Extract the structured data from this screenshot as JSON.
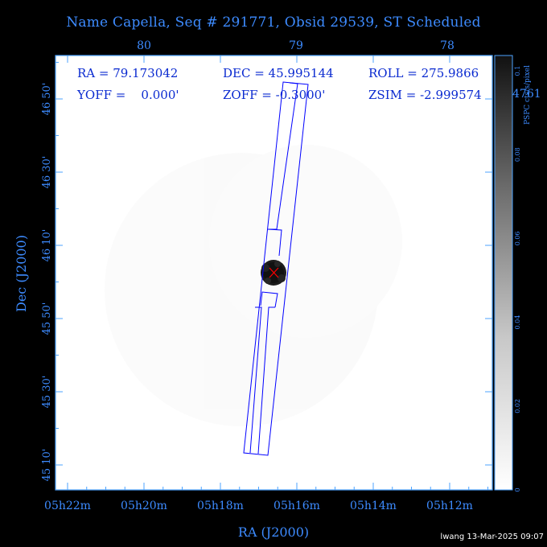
{
  "header": {
    "title": "Name Capella, Seq # 291771, Obsid 29539, ST Scheduled",
    "credit": "lwang 13-Mar-2025 09:07"
  },
  "info": {
    "ra_label": "RA = 79.173042",
    "dec_label": "DEC = 45.995144",
    "roll_label": "ROLL = 275.9866",
    "yoff_label": "YOFF =    0.000'",
    "zoff_label": "ZOFF = -0.3000'",
    "zsim_label": "ZSIM = -2.999574",
    "overflow_fragment": "4761"
  },
  "colors": {
    "axis": "#3d8bff",
    "plot_frame": "#4da3ff",
    "header_text": "#0a2ad0",
    "outline": "#0000ff",
    "marker": "#ff0000",
    "background": "#000000",
    "plot_background": "#ffffff"
  },
  "chart_data": {
    "type": "heatmap",
    "title": "Name Capella, Seq # 291771, Obsid 29539, ST Scheduled",
    "xlabel": "RA (J2000)",
    "ylabel": "Dec (J2000)",
    "x_ticks_bottom": [
      "05h22m",
      "05h20m",
      "05h18m",
      "05h16m",
      "05h14m",
      "05h12m"
    ],
    "x_ticks_top": [
      "80",
      "79",
      "78"
    ],
    "y_ticks": [
      "46 50'",
      "46 30'",
      "46 10'",
      "45 50'",
      "45 30'",
      "45 10'"
    ],
    "colorbar": {
      "label": "PSPC cts/s/pixel",
      "ticks": [
        "0",
        "0.02",
        "0.04",
        "0.06",
        "0.08",
        "0.1"
      ],
      "range": [
        0,
        0.1
      ]
    },
    "source": {
      "name": "Capella",
      "ra_deg": 79.173042,
      "dec_deg": 45.995144
    },
    "pointing": {
      "ra_deg": 79.173042,
      "dec_deg": 45.995144,
      "roll_deg": 275.9866
    },
    "grid": false
  }
}
